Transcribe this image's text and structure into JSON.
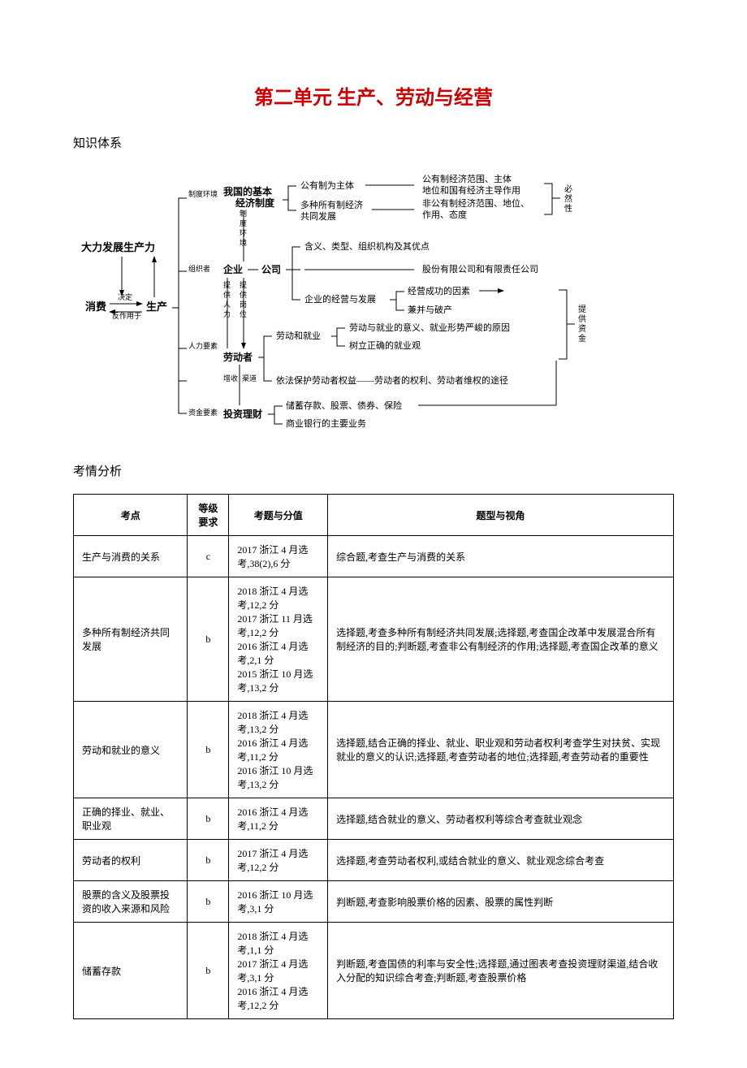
{
  "title": "第二单元 生产、劳动与经营",
  "section1": "知识体系",
  "section2": "考情分析",
  "diagram": {
    "font_family": "SimSun",
    "title_color": "#cc0000",
    "text_color": "#000000",
    "line_color": "#000000",
    "nodes": {
      "dalifazhan": "大力发展生产力",
      "xiaofei": "消费",
      "shengchan": "生产",
      "jueding": "决定",
      "fanzuoyong": "反作用于",
      "zhiduhj": "制度环境",
      "zuzhizhe": "组织者",
      "tigongrenli": "提供人力",
      "tigonggang": "提供岗位",
      "renliys": "人力要素",
      "zengshouqd": "增收渠道",
      "zijinys": "资金要素",
      "zhidu_v": "制度环境",
      "woguojiben": "我国的基本经济制度",
      "qiye": "企业",
      "gongsi": "公司",
      "laodongzhe": "劳动者",
      "touzilicai": "投资理财",
      "gongyouzhi": "公有制为主体",
      "duozhong": "多种所有制经济共同发展",
      "gongyoufw": "公有制经济范围、主体地位和国有经济主导作用",
      "feigongyou": "非公有制经济范围、地位、作用、态度",
      "biranxing": "必然性",
      "hanyi": "含义、类型、组织机构及其优点",
      "gufen": "股份有限公司和有限责任公司",
      "qiyejingying": "企业的经营与发展",
      "jingyingcg": "经营成功的因素",
      "jianbing": "兼并与破产",
      "laodongjy": "劳动和就业",
      "laodongyy": "劳动与就业的意义、就业形势严峻的原因",
      "shulizq": "树立正确的就业观",
      "yifabaohu": "依法保护劳动者权益——劳动者的权利、劳动者维权的途径",
      "tigongzj": "提供资金",
      "chuxu": "储蓄存款、股票、债券、保险",
      "shangye": "商业银行的主要业务"
    }
  },
  "table": {
    "headers": [
      "考点",
      "等级要求",
      "考题与分值",
      "题型与视角"
    ],
    "rows": [
      {
        "c1": "生产与消费的关系",
        "c2": "c",
        "c3": "2017 浙江 4 月选考,38(2),6 分",
        "c4": "综合题,考查生产与消费的关系"
      },
      {
        "c1": "多种所有制经济共同发展",
        "c2": "b",
        "c3": "2018 浙江 4 月选考,12,2 分\n2017 浙江 11 月选考,12,2 分\n2016 浙江 4 月选考,2,1 分\n2015 浙江 10 月选考,13,2 分",
        "c4": "选择题,考查多种所有制经济共同发展;选择题,考查国企改革中发展混合所有制经济的目的;判断题,考查非公有制经济的作用;选择题,考查国企改革的意义"
      },
      {
        "c1": "劳动和就业的意义",
        "c2": "b",
        "c3": "2018 浙江 4 月选考,13,2 分\n2016 浙江 4 月选考,11,2 分\n2016 浙江 10 月选考,13,2 分",
        "c4": "选择题,结合正确的择业、就业、职业观和劳动者权利考查学生对扶贫、实现就业的意义的认识;选择题,考查劳动者的地位;选择题,考查劳动者的重要性"
      },
      {
        "c1": "正确的择业、就业、职业观",
        "c2": "b",
        "c3": "2016 浙江 4 月选考,11,2 分",
        "c4": "选择题,结合就业的意义、劳动者权利等综合考查就业观念"
      },
      {
        "c1": "劳动者的权利",
        "c2": "b",
        "c3": "2017 浙江 4 月选考,12,2 分",
        "c4": "选择题,考查劳动者权利,或结合就业的意义、就业观念综合考查"
      },
      {
        "c1": "股票的含义及股票投资的收入来源和风险",
        "c2": "b",
        "c3": "2016 浙江 10 月选考,3,1 分",
        "c4": "判断题,考查影响股票价格的因素、股票的属性判断"
      },
      {
        "c1": "储蓄存款",
        "c2": "b",
        "c3": "2018 浙江 4 月选考,1,1 分\n2017 浙江 4 月选考,3,1 分\n2016 浙江 4 月选考,12,2 分",
        "c4": "判断题,考查国债的利率与安全性;选择题,通过图表考查投资理财渠道,结合收入分配的知识综合考查;判断题,考查股票价格"
      }
    ]
  }
}
